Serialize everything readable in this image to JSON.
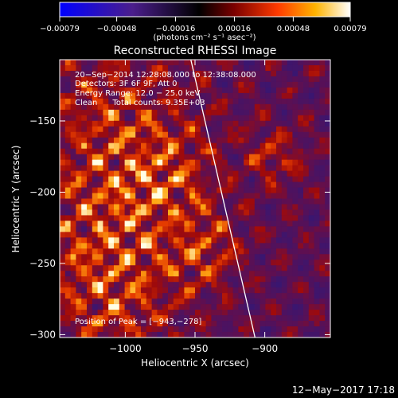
{
  "chart_data": {
    "type": "heatmap",
    "title": "Reconstructed RHESSI Image",
    "xlabel": "Heliocentric X (arcsec)",
    "ylabel": "Heliocentric Y (arcsec)",
    "xlim": [
      -1047,
      -853
    ],
    "ylim": [
      -302,
      -107
    ],
    "x_ticks": [
      -1000,
      -950,
      -900
    ],
    "x_tick_labels": [
      "−1000",
      "−950",
      "−900"
    ],
    "y_ticks": [
      -150,
      -200,
      -250,
      -300
    ],
    "y_tick_labels": [
      "−150",
      "−200",
      "−250",
      "−300"
    ],
    "colorbar": {
      "range": [
        -0.00079,
        0.00079
      ],
      "ticks": [
        -0.00079,
        -0.00048,
        -0.00016,
        0.00016,
        0.00048,
        0.00079
      ],
      "tick_labels": [
        "−0.00079",
        "−0.00048",
        "−0.00016",
        "0.00016",
        "0.00048",
        "0.00079"
      ],
      "unit_label": "(photons cm⁻² s⁻¹ asec⁻²)",
      "colors": [
        "#0000ff",
        "#4b1e8c",
        "#000000",
        "#7a0000",
        "#ff3a00",
        "#ffb300",
        "#ffffff"
      ]
    },
    "annotations": [
      "20−Sep−2014 12:28:08.000 to 12:38:08.000",
      "Detectors: 3F 6F 9F, Att 0",
      "Energy Range: 12.0 − 25.0 keV",
      "Clean      Total counts: 9.35E+03"
    ],
    "peak_label": "Position of Peak = [−943,−278]",
    "peak": [
      -943,
      -278
    ],
    "limb_line": [
      [
        -953,
        -107
      ],
      [
        -907,
        -302
      ]
    ],
    "grid": false
  },
  "footer": {
    "timestamp": "12−May−2017 17:18"
  }
}
